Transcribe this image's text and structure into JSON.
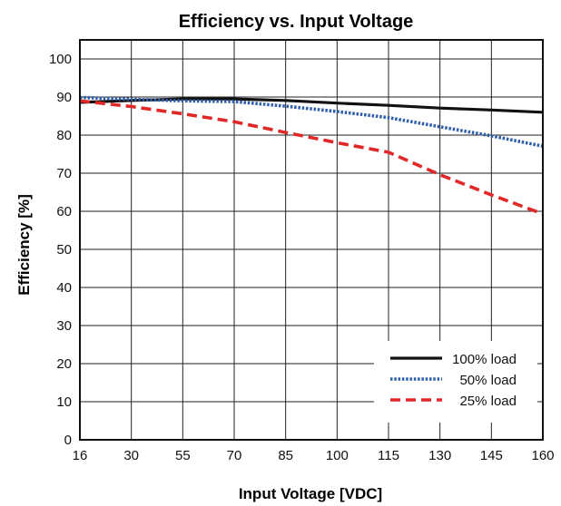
{
  "chart_data": {
    "type": "line",
    "title": "Efficiency vs. Input Voltage",
    "xlabel": "Input Voltage [VDC]",
    "ylabel": "Efficiency [%]",
    "x_ticks": [
      "16",
      "30",
      "55",
      "70",
      "85",
      "100",
      "115",
      "130",
      "145",
      "160"
    ],
    "y_ticks": [
      "0",
      "10",
      "20",
      "30",
      "40",
      "50",
      "60",
      "70",
      "80",
      "90",
      "100"
    ],
    "ylim": [
      0,
      105
    ],
    "grid": true,
    "legend_position": "bottom-right",
    "series": [
      {
        "name": "100% load",
        "color": "#111111",
        "style": "solid",
        "x": [
          "16",
          "30",
          "55",
          "70",
          "85",
          "100",
          "115",
          "130",
          "145",
          "160"
        ],
        "values": [
          88.6,
          89.1,
          89.5,
          89.5,
          89.1,
          88.4,
          87.8,
          87.1,
          86.6,
          86.0
        ]
      },
      {
        "name": "50% load",
        "color": "#2f5fa8",
        "style": "dotted",
        "x": [
          "16",
          "30",
          "55",
          "70",
          "85",
          "100",
          "115",
          "130",
          "145",
          "160"
        ],
        "values": [
          89.9,
          89.4,
          89.0,
          88.8,
          87.6,
          86.2,
          84.6,
          82.2,
          79.8,
          77.1
        ]
      },
      {
        "name": "25% load",
        "color": "#e02828",
        "style": "dashed",
        "x": [
          "16",
          "30",
          "55",
          "70",
          "85",
          "100",
          "115",
          "130",
          "145",
          "160"
        ],
        "values": [
          89.0,
          87.5,
          85.6,
          83.5,
          80.7,
          78.0,
          75.5,
          69.6,
          64.3,
          59.3
        ]
      }
    ]
  }
}
